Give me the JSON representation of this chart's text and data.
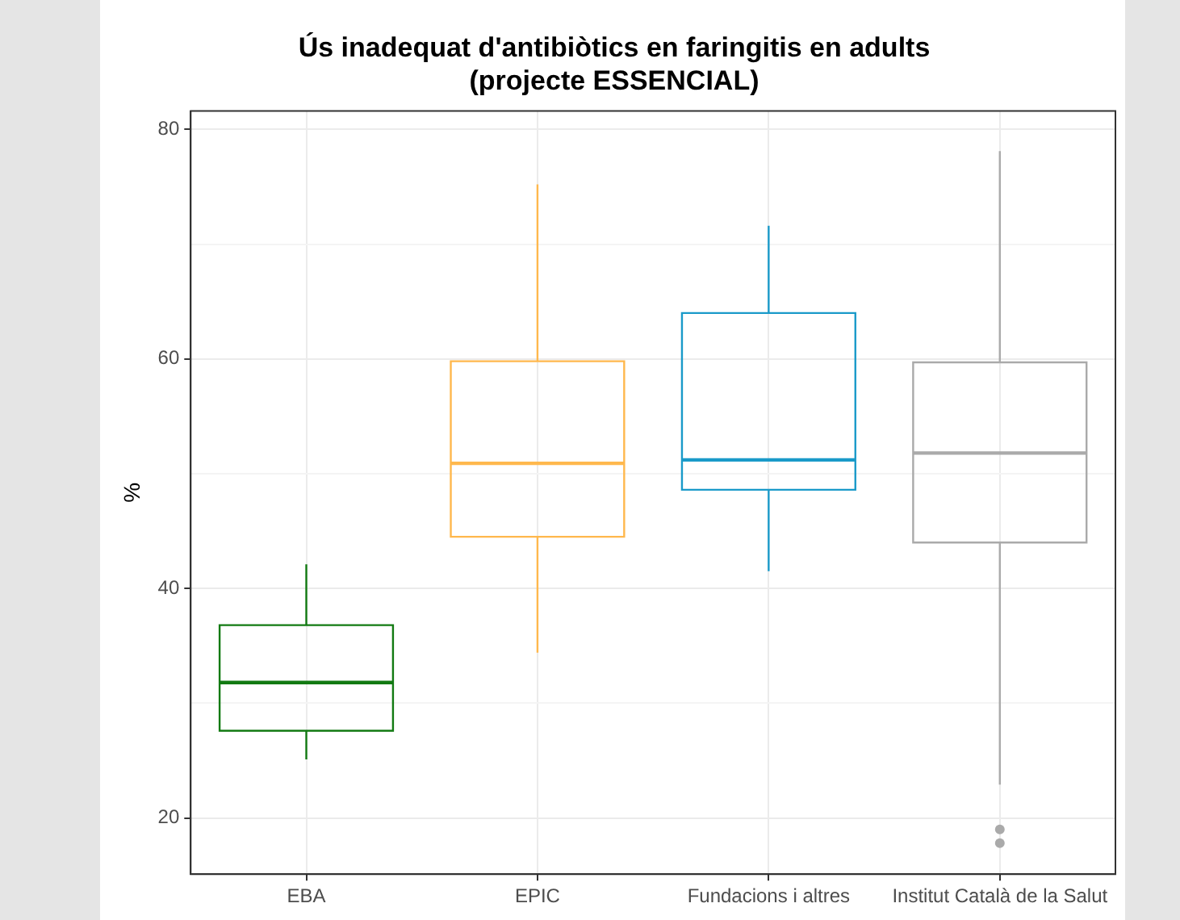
{
  "chart_data": {
    "type": "box",
    "title": "Ús inadequat d'antibiòtics en faringitis en adults\n(projecte ESSENCIAL)",
    "ylabel": "%",
    "categories": [
      "EBA",
      "EPIC",
      "Fundacions i altres",
      "Institut Català de la Salut"
    ],
    "colors": [
      "#127a12",
      "#ffb84d",
      "#1a9ac9",
      "#aaaaaa"
    ],
    "boxes": [
      {
        "low": 25.1,
        "q1": 27.6,
        "median": 31.8,
        "q3": 36.8,
        "high": 42.1
      },
      {
        "low": 34.4,
        "q1": 44.5,
        "median": 50.9,
        "q3": 59.8,
        "high": 75.2
      },
      {
        "low": 41.5,
        "q1": 48.6,
        "median": 51.2,
        "q3": 64.0,
        "high": 71.6
      },
      {
        "low": 22.9,
        "q1": 44.0,
        "median": 51.8,
        "q3": 59.7,
        "high": 78.1,
        "outliers": [
          19.0,
          17.8
        ]
      }
    ],
    "ylim": [
      15.1,
      81.6
    ],
    "yticks": [
      20,
      {
        "value": 30,
        "label": null
      },
      40,
      {
        "value": 50,
        "label": null
      },
      60,
      {
        "value": 70,
        "label": null
      },
      80
    ],
    "grid": true,
    "legend": false
  }
}
